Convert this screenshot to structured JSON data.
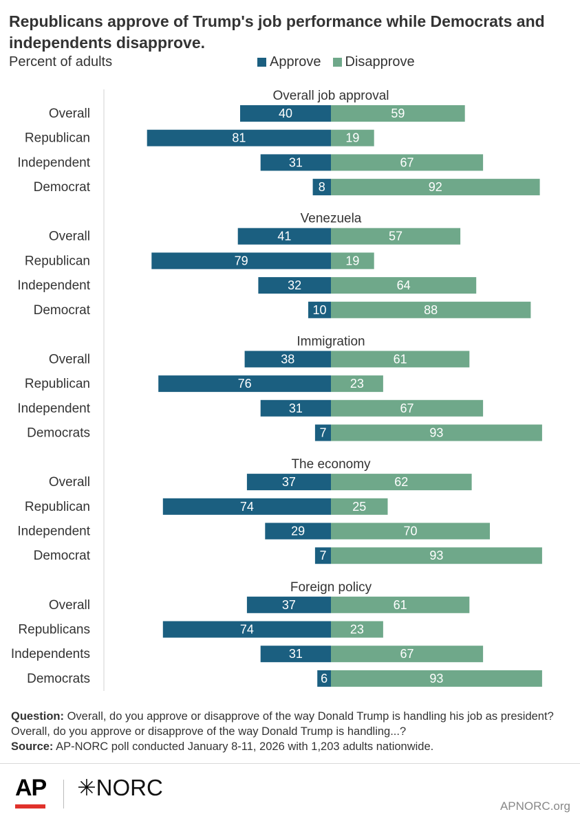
{
  "title": "Republicans approve of Trump's job performance while Democrats and independents disapprove.",
  "subtitle": "Percent of adults",
  "legend": {
    "approve": "Approve",
    "disapprove": "Disapprove"
  },
  "colors": {
    "approve": "#1b5f80",
    "disapprove": "#6fa88a",
    "axis": "#d0d0d0"
  },
  "chart_data": {
    "type": "bar",
    "orientation": "horizontal-diverging",
    "series": [
      "Approve",
      "Disapprove"
    ],
    "groups": [
      {
        "title": "Overall job approval",
        "rows": [
          {
            "label": "Overall",
            "approve": 40,
            "disapprove": 59
          },
          {
            "label": "Republican",
            "approve": 81,
            "disapprove": 19
          },
          {
            "label": "Independent",
            "approve": 31,
            "disapprove": 67
          },
          {
            "label": "Democrat",
            "approve": 8,
            "disapprove": 92
          }
        ]
      },
      {
        "title": "Venezuela",
        "rows": [
          {
            "label": "Overall",
            "approve": 41,
            "disapprove": 57
          },
          {
            "label": "Republican",
            "approve": 79,
            "disapprove": 19
          },
          {
            "label": "Independent",
            "approve": 32,
            "disapprove": 64
          },
          {
            "label": "Democrat",
            "approve": 10,
            "disapprove": 88
          }
        ]
      },
      {
        "title": "Immigration",
        "rows": [
          {
            "label": "Overall",
            "approve": 38,
            "disapprove": 61
          },
          {
            "label": "Republican",
            "approve": 76,
            "disapprove": 23
          },
          {
            "label": "Independent",
            "approve": 31,
            "disapprove": 67
          },
          {
            "label": "Democrats",
            "approve": 7,
            "disapprove": 93
          }
        ]
      },
      {
        "title": "The economy",
        "rows": [
          {
            "label": "Overall",
            "approve": 37,
            "disapprove": 62
          },
          {
            "label": "Republican",
            "approve": 74,
            "disapprove": 25
          },
          {
            "label": "Independent",
            "approve": 29,
            "disapprove": 70
          },
          {
            "label": "Democrat",
            "approve": 7,
            "disapprove": 93
          }
        ]
      },
      {
        "title": "Foreign policy",
        "rows": [
          {
            "label": "Overall",
            "approve": 37,
            "disapprove": 61
          },
          {
            "label": "Republicans",
            "approve": 74,
            "disapprove": 23
          },
          {
            "label": "Independents",
            "approve": 31,
            "disapprove": 67
          },
          {
            "label": "Democrats",
            "approve": 6,
            "disapprove": 93
          }
        ]
      }
    ]
  },
  "footnote": {
    "question_label": "Question:",
    "question_text": "Overall, do you approve or disapprove of the way Donald Trump is handling his job as president? Overall, do you approve or disapprove of the way Donald Trump is handling...?",
    "source_label": "Source:",
    "source_text": "AP-NORC poll conducted January 8-11, 2026 with 1,203 adults nationwide."
  },
  "footer": {
    "logo_ap": "AP",
    "logo_norc": "✳NORC",
    "site": "APNORC.org"
  }
}
